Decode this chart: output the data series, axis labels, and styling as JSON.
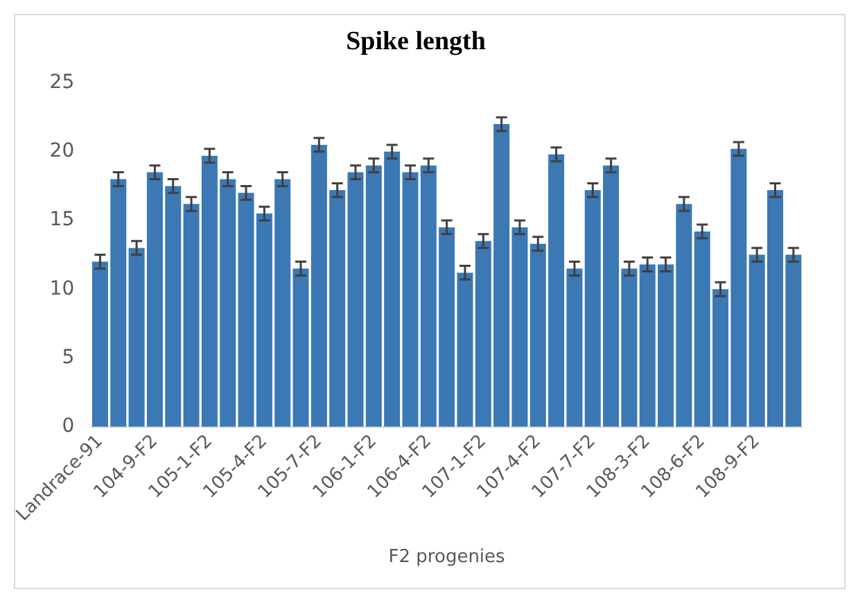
{
  "chart_data": {
    "type": "bar",
    "title": "Spike length",
    "xlabel": "F2 progenies",
    "categories": [
      "Landrace-91",
      null,
      null,
      "104-9-F2",
      null,
      null,
      "105-1-F2",
      null,
      null,
      "105-4-F2",
      null,
      null,
      "105-7-F2",
      null,
      null,
      "106-1-F2",
      null,
      null,
      "106-4-F2",
      null,
      null,
      "107-1-F2",
      null,
      null,
      "107-4-F2",
      null,
      null,
      "107-7-F2",
      null,
      null,
      "108-3-F2",
      null,
      null,
      "108-6-F2",
      null,
      null,
      "108-9-F2",
      null,
      null
    ],
    "values": [
      12,
      18,
      13,
      18.5,
      17.5,
      16.2,
      19.7,
      18,
      17,
      15.5,
      18,
      11.5,
      20.5,
      17.2,
      18.5,
      19,
      20,
      18.5,
      19,
      14.5,
      11.2,
      13.5,
      22,
      14.5,
      13.3,
      19.8,
      11.5,
      17.2,
      19,
      11.5,
      11.8,
      11.8,
      16.2,
      14.2,
      10,
      20.2,
      12.5,
      17.2,
      12.5
    ],
    "errors": [
      0.5,
      0.5,
      0.5,
      0.5,
      0.5,
      0.5,
      0.5,
      0.5,
      0.5,
      0.5,
      0.5,
      0.5,
      0.5,
      0.5,
      0.5,
      0.5,
      0.5,
      0.5,
      0.5,
      0.5,
      0.5,
      0.5,
      0.5,
      0.5,
      0.5,
      0.5,
      0.5,
      0.5,
      0.5,
      0.5,
      0.5,
      0.5,
      0.5,
      0.5,
      0.5,
      0.5,
      0.5,
      0.5,
      0.5
    ],
    "color": "#3b78b4",
    "ylim": [
      0,
      25
    ],
    "yticks": [
      0,
      5,
      10,
      15,
      20,
      25
    ],
    "grid": false,
    "legend": false
  }
}
